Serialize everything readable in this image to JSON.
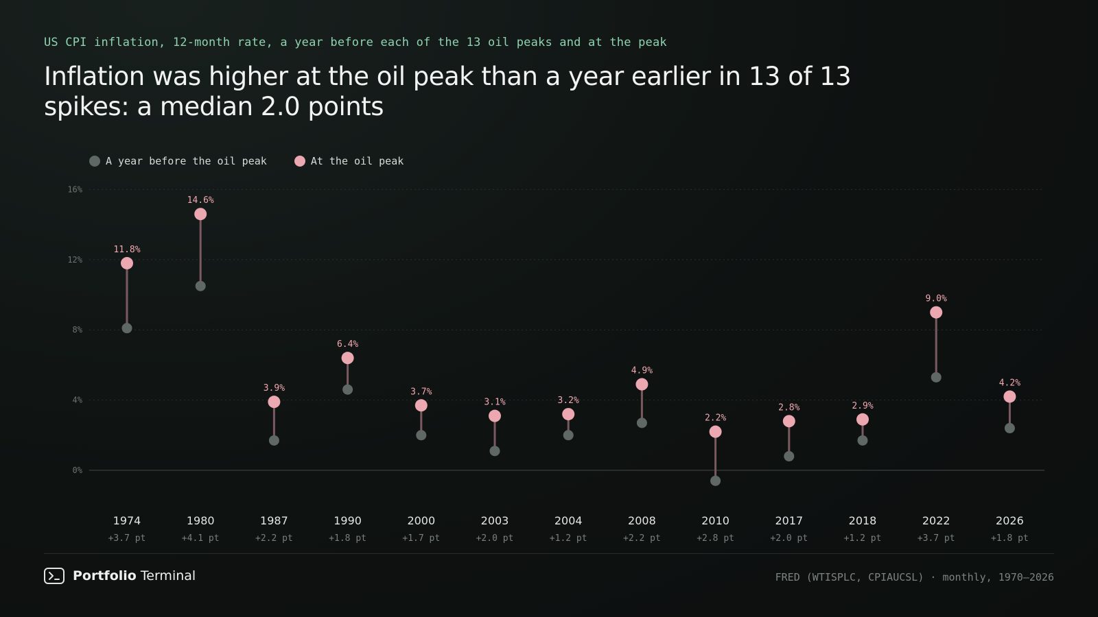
{
  "header": {
    "kicker": "US CPI inflation, 12-month rate, a year before each of the 13 oil peaks and at the peak",
    "headline": "Inflation was higher at the oil peak than a year earlier in 13 of 13 spikes: a median 2.0 points"
  },
  "legend": {
    "before_label": "A year before the oil peak",
    "peak_label": "At the oil peak"
  },
  "colors": {
    "before": "#5f6864",
    "peak": "#eca8b1",
    "connector": "#7a5a60",
    "grid": "#2a302e",
    "axis": "#3a403e"
  },
  "footer": {
    "brand_bold": "Portfolio",
    "brand_regular": "Terminal",
    "brand_icon": "terminal-icon",
    "source": "FRED (WTISPLC, CPIAUCSL) · monthly, 1970–2026"
  },
  "chart_data": {
    "type": "dumbbell",
    "ylim": [
      -1.5,
      16
    ],
    "yticks": [
      0,
      4,
      8,
      12,
      16
    ],
    "ytick_labels": [
      "0%",
      "4%",
      "8%",
      "12%",
      "16%"
    ],
    "grid": true,
    "legend_position": "top-left",
    "categories": [
      "1974",
      "1980",
      "1987",
      "1990",
      "2000",
      "2003",
      "2004",
      "2008",
      "2010",
      "2017",
      "2018",
      "2022",
      "2026"
    ],
    "series": [
      {
        "name": "A year before the oil peak",
        "values": [
          8.1,
          10.5,
          1.7,
          4.6,
          2.0,
          1.1,
          2.0,
          2.7,
          -0.6,
          0.8,
          1.7,
          5.3,
          2.4
        ]
      },
      {
        "name": "At the oil peak",
        "values": [
          11.8,
          14.6,
          3.9,
          6.4,
          3.7,
          3.1,
          3.2,
          4.9,
          2.2,
          2.8,
          2.9,
          9.0,
          4.2
        ]
      }
    ],
    "value_labels": [
      "11.8%",
      "14.6%",
      "3.9%",
      "6.4%",
      "3.7%",
      "3.1%",
      "3.2%",
      "4.9%",
      "2.2%",
      "2.8%",
      "2.9%",
      "9.0%",
      "4.2%"
    ],
    "delta_labels": [
      "+3.7 pt",
      "+4.1 pt",
      "+2.2 pt",
      "+1.8 pt",
      "+1.7 pt",
      "+2.0 pt",
      "+1.2 pt",
      "+2.2 pt",
      "+2.8 pt",
      "+2.0 pt",
      "+1.2 pt",
      "+3.7 pt",
      "+1.8 pt"
    ]
  }
}
